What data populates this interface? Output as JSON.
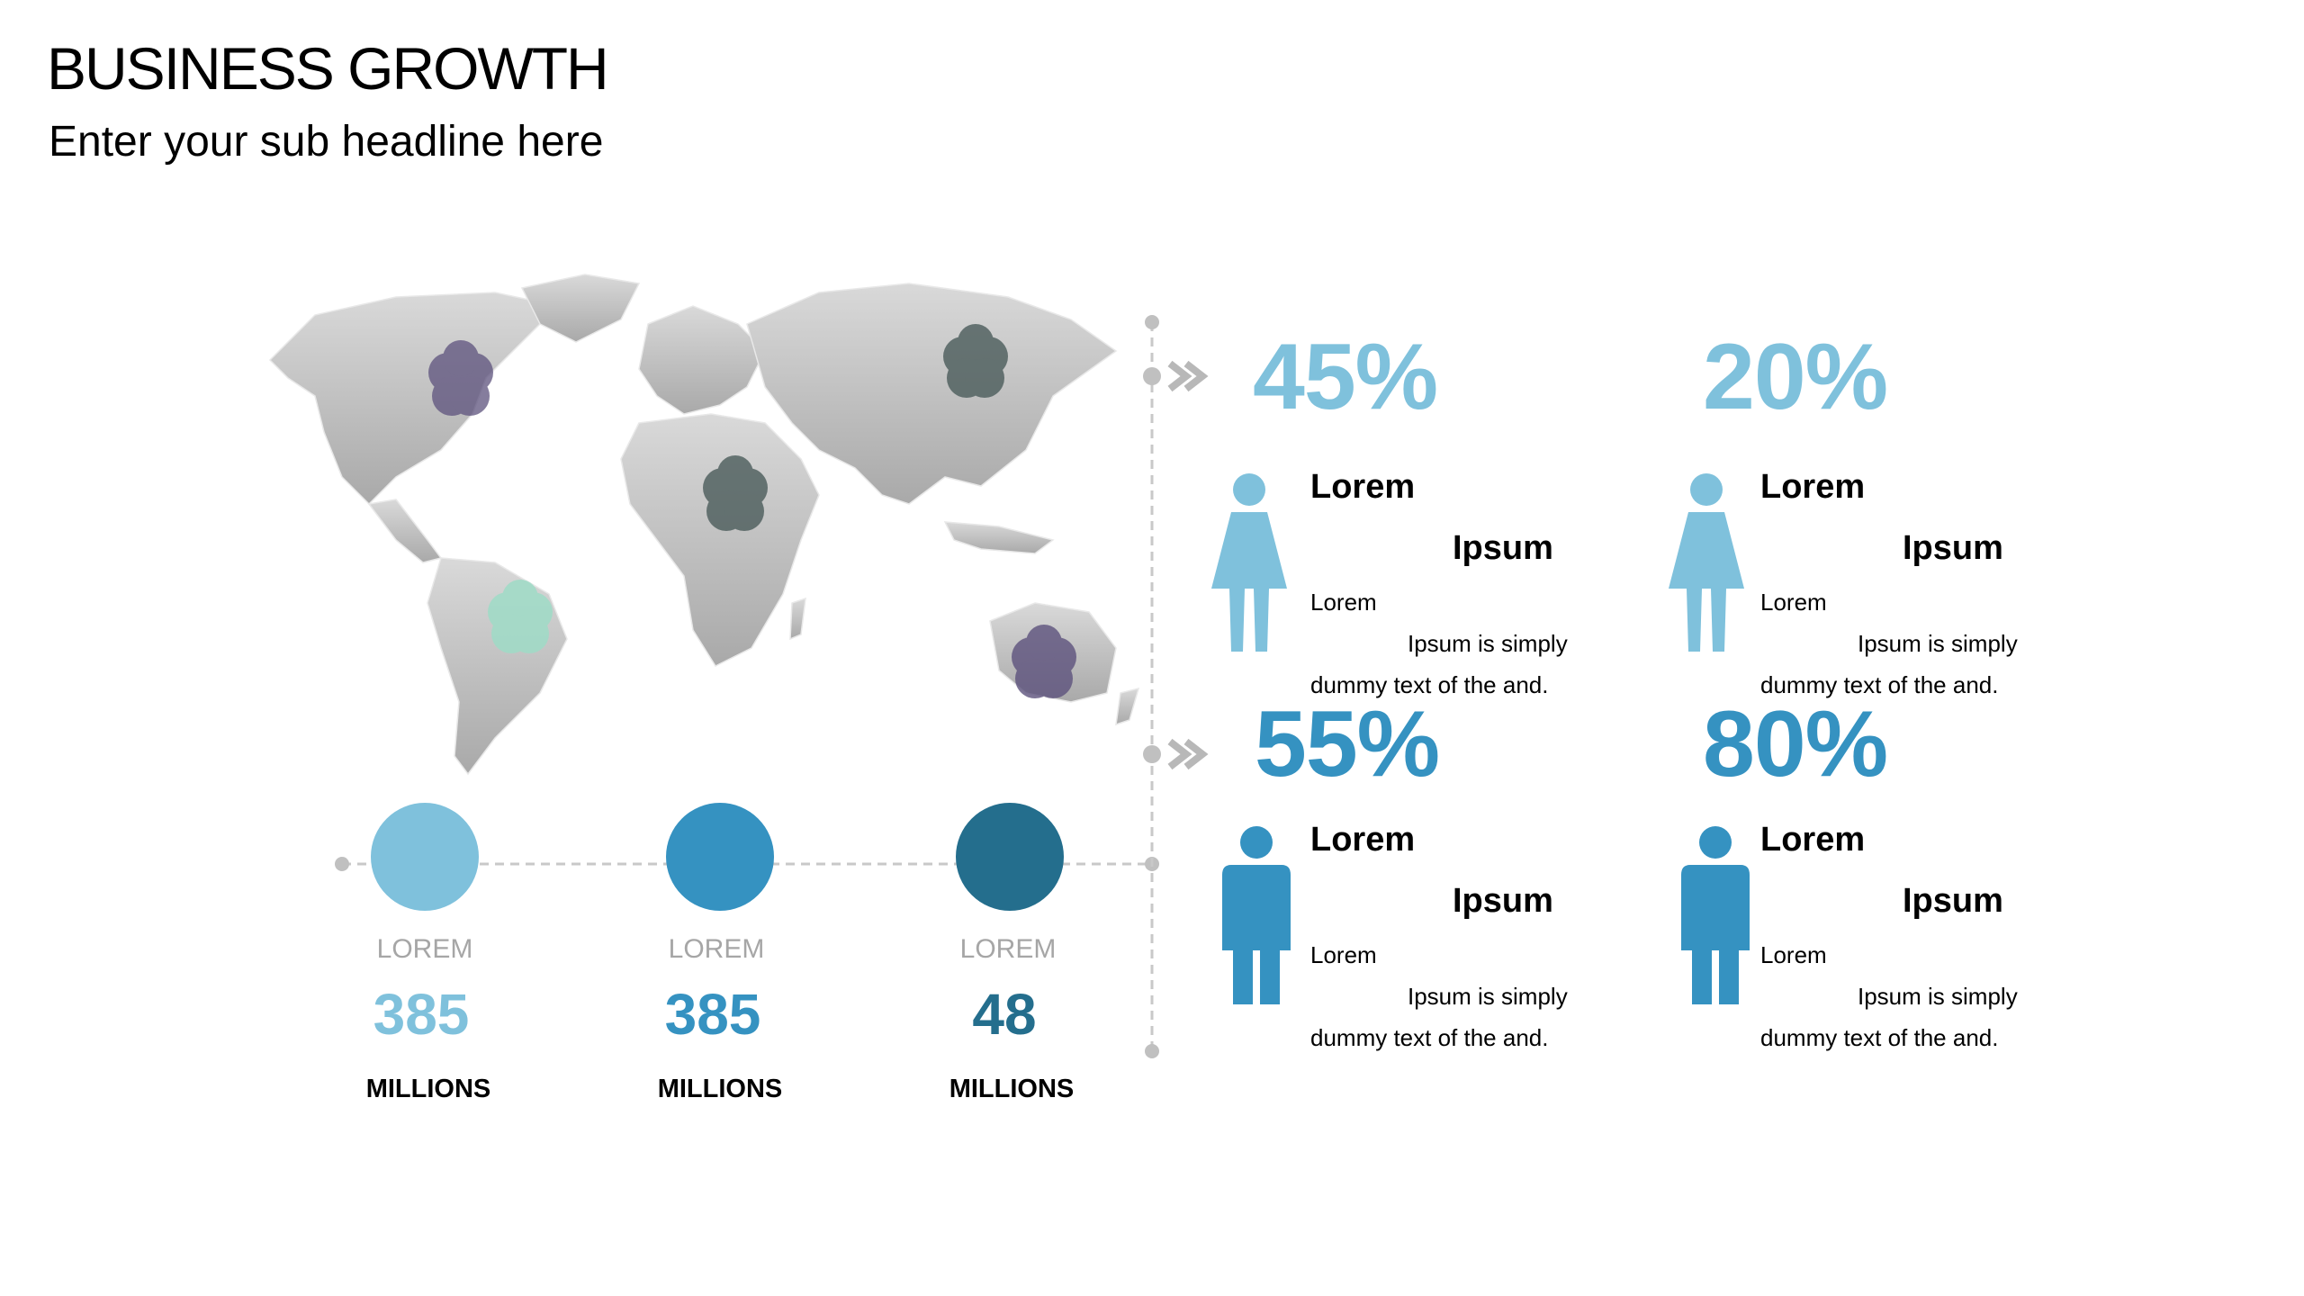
{
  "header": {
    "title": "BUSINESS GROWTH",
    "subtitle": "Enter your sub headline here"
  },
  "colors": {
    "light_blue": "#7fc1dc",
    "mid_blue": "#3592c1",
    "dark_blue": "#246e8d",
    "map_gray": "#c8c8c8",
    "cluster_purple": "#5d527d",
    "cluster_slate": "#4b5c5b",
    "cluster_mint": "#9fdcc7"
  },
  "map_markers": [
    {
      "region": "north-america",
      "color": "#5d527d"
    },
    {
      "region": "south-america",
      "color": "#9fdcc7"
    },
    {
      "region": "africa",
      "color": "#4b5c5b"
    },
    {
      "region": "asia",
      "color": "#4b5c5b"
    },
    {
      "region": "australia",
      "color": "#5d527d"
    }
  ],
  "stats": [
    {
      "label": "LOREM",
      "value": "385",
      "unit": "MILLIONS",
      "color": "#7fc1dc"
    },
    {
      "label": "LOREM",
      "value": "385",
      "unit": "MILLIONS",
      "color": "#3592c1"
    },
    {
      "label": "LOREM",
      "value": "48",
      "unit": "MILLIONS",
      "color": "#246e8d"
    }
  ],
  "cards": [
    {
      "percent": "45%",
      "gender": "female",
      "title_1": "Lorem",
      "title_2": "Ipsum",
      "desc_1": "Lorem",
      "desc_2": "Ipsum is simply",
      "desc_3": "dummy text of the and.",
      "color": "#7fc1dc"
    },
    {
      "percent": "20%",
      "gender": "female",
      "title_1": "Lorem",
      "title_2": "Ipsum",
      "desc_1": "Lorem",
      "desc_2": "Ipsum is simply",
      "desc_3": "dummy text of the and.",
      "color": "#7fc1dc"
    },
    {
      "percent": "55%",
      "gender": "male",
      "title_1": "Lorem",
      "title_2": "Ipsum",
      "desc_1": "Lorem",
      "desc_2": "Ipsum is simply",
      "desc_3": "dummy text of the and.",
      "color": "#3592c1"
    },
    {
      "percent": "80%",
      "gender": "male",
      "title_1": "Lorem",
      "title_2": "Ipsum",
      "desc_1": "Lorem",
      "desc_2": "Ipsum is simply",
      "desc_3": "dummy text of the and.",
      "color": "#3592c1"
    }
  ]
}
